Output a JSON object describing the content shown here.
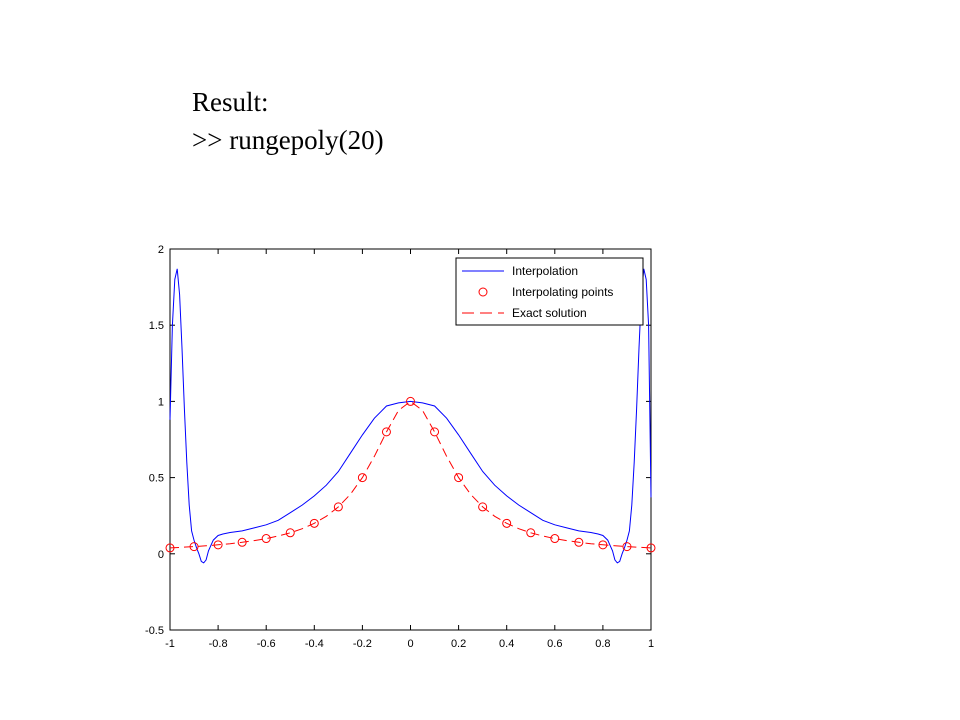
{
  "slide": {
    "line1": "Result:",
    "line2": ">> rungepoly(20)"
  },
  "chart_data": {
    "type": "line",
    "title": "",
    "xlabel": "",
    "ylabel": "",
    "xlim": [
      -1,
      1
    ],
    "ylim": [
      -0.5,
      2
    ],
    "grid": false,
    "legend_position": "top-right",
    "xticks": [
      -1,
      -0.8,
      -0.6,
      -0.4,
      -0.2,
      0,
      0.2,
      0.4,
      0.6,
      0.8,
      1
    ],
    "xtick_labels": [
      "-1",
      "-0.8",
      "-0.6",
      "-0.4",
      "-0.2",
      "0",
      "0.2",
      "0.4",
      "0.6",
      "0.8",
      "1"
    ],
    "yticks": [
      -0.5,
      0,
      0.5,
      1,
      1.5,
      2
    ],
    "ytick_labels": [
      "-0.5",
      "0",
      "0.5",
      "1",
      "1.5",
      "2"
    ],
    "series": [
      {
        "name": "Interpolation",
        "style": "solid",
        "color": "#0000ff",
        "x": [
          -1.0,
          -0.99,
          -0.98,
          -0.97,
          -0.96,
          -0.95,
          -0.94,
          -0.93,
          -0.92,
          -0.91,
          -0.9,
          -0.89,
          -0.88,
          -0.87,
          -0.86,
          -0.85,
          -0.84,
          -0.82,
          -0.8,
          -0.78,
          -0.75,
          -0.7,
          -0.65,
          -0.6,
          -0.55,
          -0.5,
          -0.45,
          -0.4,
          -0.35,
          -0.3,
          -0.25,
          -0.2,
          -0.15,
          -0.1,
          -0.05,
          0.0,
          0.05,
          0.1,
          0.15,
          0.2,
          0.25,
          0.3,
          0.35,
          0.4,
          0.45,
          0.5,
          0.55,
          0.6,
          0.65,
          0.7,
          0.75,
          0.78,
          0.8,
          0.82,
          0.84,
          0.85,
          0.86,
          0.87,
          0.88,
          0.89,
          0.9,
          0.91,
          0.92,
          0.93,
          0.94,
          0.95,
          0.96,
          0.97,
          0.98,
          0.99,
          1.0
        ],
        "y": [
          0.88,
          1.5,
          1.8,
          1.87,
          1.7,
          1.35,
          0.95,
          0.6,
          0.32,
          0.15,
          0.09,
          0.04,
          0.0,
          -0.05,
          -0.06,
          -0.04,
          0.02,
          0.09,
          0.12,
          0.13,
          0.14,
          0.15,
          0.17,
          0.19,
          0.22,
          0.27,
          0.32,
          0.38,
          0.45,
          0.54,
          0.66,
          0.78,
          0.89,
          0.97,
          0.99,
          1.0,
          0.99,
          0.97,
          0.89,
          0.78,
          0.66,
          0.54,
          0.45,
          0.38,
          0.32,
          0.27,
          0.22,
          0.19,
          0.17,
          0.15,
          0.14,
          0.13,
          0.12,
          0.09,
          0.02,
          -0.04,
          -0.06,
          -0.05,
          0.0,
          0.04,
          0.09,
          0.15,
          0.32,
          0.6,
          0.95,
          1.35,
          1.7,
          1.87,
          1.8,
          1.5,
          0.37
        ]
      },
      {
        "name": "Interpolating points",
        "style": "markers",
        "color": "#ff0000",
        "x": [
          -1.0,
          -0.9,
          -0.8,
          -0.7,
          -0.6,
          -0.5,
          -0.4,
          -0.3,
          -0.2,
          -0.1,
          0.0,
          0.1,
          0.2,
          0.3,
          0.4,
          0.5,
          0.6,
          0.7,
          0.8,
          0.9,
          1.0
        ],
        "y": [
          0.0385,
          0.0471,
          0.0588,
          0.0755,
          0.1,
          0.1379,
          0.2,
          0.3077,
          0.5,
          0.8,
          1.0,
          0.8,
          0.5,
          0.3077,
          0.2,
          0.1379,
          0.1,
          0.0755,
          0.0588,
          0.0471,
          0.0385
        ]
      },
      {
        "name": "Exact solution",
        "style": "dashed",
        "color": "#ff0000",
        "function": "1/(1+25*x^2)",
        "x": [
          -1.0,
          -0.95,
          -0.9,
          -0.85,
          -0.8,
          -0.75,
          -0.7,
          -0.65,
          -0.6,
          -0.55,
          -0.5,
          -0.45,
          -0.4,
          -0.35,
          -0.3,
          -0.25,
          -0.2,
          -0.15,
          -0.1,
          -0.05,
          0.0,
          0.05,
          0.1,
          0.15,
          0.2,
          0.25,
          0.3,
          0.35,
          0.4,
          0.45,
          0.5,
          0.55,
          0.6,
          0.65,
          0.7,
          0.75,
          0.8,
          0.85,
          0.9,
          0.95,
          1.0
        ],
        "y": [
          0.0385,
          0.0424,
          0.0471,
          0.0525,
          0.0588,
          0.0664,
          0.0755,
          0.0865,
          0.1,
          0.1168,
          0.1379,
          0.1649,
          0.2,
          0.2462,
          0.3077,
          0.3902,
          0.5,
          0.64,
          0.8,
          0.9412,
          1.0,
          0.9412,
          0.8,
          0.64,
          0.5,
          0.3902,
          0.3077,
          0.2462,
          0.2,
          0.1649,
          0.1379,
          0.1168,
          0.1,
          0.0865,
          0.0755,
          0.0664,
          0.0588,
          0.0525,
          0.0471,
          0.0424,
          0.0385
        ]
      }
    ]
  }
}
